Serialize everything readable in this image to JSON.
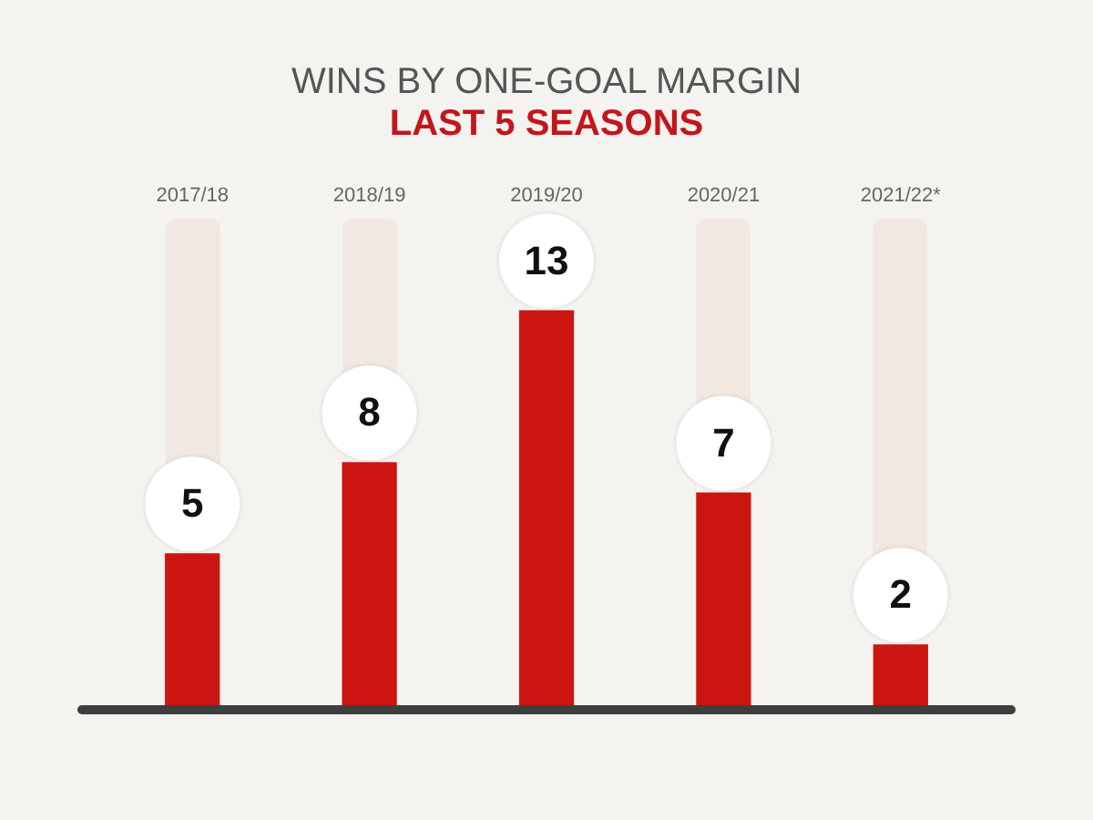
{
  "chart_data": {
    "type": "bar",
    "title": "WINS BY ONE-GOAL MARGIN",
    "subtitle": "LAST 5 SEASONS",
    "categories": [
      "2017/18",
      "2018/19",
      "2019/20",
      "2020/21",
      "2021/22*"
    ],
    "values": [
      5,
      8,
      13,
      7,
      2
    ],
    "color": "#cc1511",
    "data_labels": true,
    "tick_labels": "x"
  }
}
